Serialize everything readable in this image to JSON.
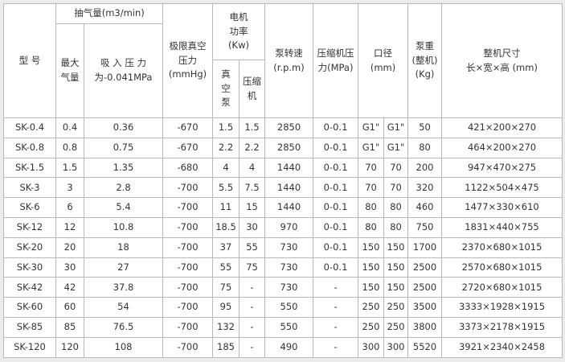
{
  "header": {
    "model": "型 号",
    "flow": "抽气量(m3/min)",
    "max_flow": "最大\n气量",
    "suction": "吸 入 压 力\n为-0.041MPa",
    "vacuum": "极限真空\n压力\n(mmHg)",
    "power": "电机\n功率\n(Kw)",
    "pump_power": "真\n空\n泵",
    "comp_power": "压缩\n机",
    "speed": "泵转速\n(r.p.m)",
    "comp_pressure": "压缩机压\n力(MPa)",
    "bore": "口径\n(mm)",
    "weight": "泵重\n(整机)\n(Kg)",
    "size": "整机尺寸\n长×宽×高 (mm)"
  },
  "table": {
    "rows": [
      [
        "SK-0.4",
        "0.4",
        "0.36",
        "-670",
        "1.5",
        "1.5",
        "2850",
        "0-0.1",
        "G1\"",
        "G1\"",
        "50",
        "421×200×270"
      ],
      [
        "SK-0.8",
        "0.8",
        "0.75",
        "-670",
        "2.2",
        "2.2",
        "2850",
        "0-0.1",
        "G1\"",
        "G1\"",
        "80",
        "464×200×270"
      ],
      [
        "SK-1.5",
        "1.5",
        "1.35",
        "-680",
        "4",
        "4",
        "1440",
        "0-0.1",
        "70",
        "70",
        "200",
        "947×470×275"
      ],
      [
        "SK-3",
        "3",
        "2.8",
        "-700",
        "5.5",
        "7.5",
        "1440",
        "0-0.1",
        "70",
        "70",
        "320",
        "1122×504×475"
      ],
      [
        "SK-6",
        "6",
        "5.4",
        "-700",
        "11",
        "15",
        "1440",
        "0-0.1",
        "80",
        "80",
        "460",
        "1477×330×610"
      ],
      [
        "SK-12",
        "12",
        "10.8",
        "-700",
        "18.5",
        "30",
        "970",
        "0-0.1",
        "80",
        "80",
        "750",
        "1831×440×755"
      ],
      [
        "SK-20",
        "20",
        "18",
        "-700",
        "37",
        "55",
        "730",
        "0-0.1",
        "150",
        "150",
        "1700",
        "2370×680×1015"
      ],
      [
        "SK-30",
        "30",
        "27",
        "-700",
        "55",
        "75",
        "730",
        "0-0.1",
        "150",
        "150",
        "2500",
        "2570×680×1015"
      ],
      [
        "SK-42",
        "42",
        "37.8",
        "-700",
        "75",
        "-",
        "730",
        "-",
        "150",
        "150",
        "2500",
        "2720×680×1015"
      ],
      [
        "SK-60",
        "60",
        "54",
        "-700",
        "95",
        "-",
        "550",
        "-",
        "250",
        "250",
        "3500",
        "3333×1928×1915"
      ],
      [
        "SK-85",
        "85",
        "76.5",
        "-700",
        "132",
        "-",
        "550",
        "-",
        "250",
        "250",
        "3800",
        "3373×2178×1915"
      ],
      [
        "SK-120",
        "120",
        "108",
        "-700",
        "185",
        "-",
        "490",
        "-",
        "300",
        "300",
        "5520",
        "3921×2340×2458"
      ]
    ]
  }
}
